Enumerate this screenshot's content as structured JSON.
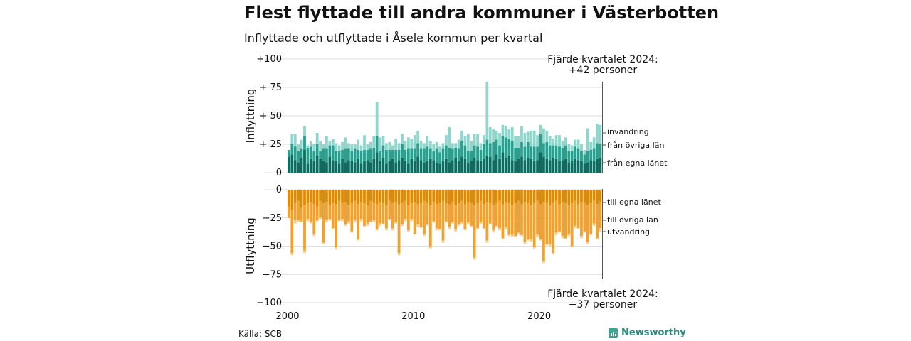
{
  "title": "Flest flyttade till andra kommuner i Västerbotten",
  "subtitle": "Inflyttade och utflyttade i Åsele kommun per kvartal",
  "source": "Källa: SCB",
  "brand": "Newsworthy",
  "colors": {
    "in_egna": "#0b6d5f",
    "in_ovriga": "#26a08f",
    "in_invandring": "#8fd6cc",
    "out_egna": "#e08a00",
    "out_ovriga": "#f3a12c",
    "out_utvandring": "#f7cf94",
    "grid": "#dddddd"
  },
  "chart_data": {
    "type": "bar",
    "stacked": true,
    "x_start": "2000 Q1",
    "x_end": "2024 Q4",
    "x_tick_labels": [
      "2000",
      "2010",
      "2020"
    ],
    "upper_panel": {
      "ylabel": "Inflyttning",
      "ylim": [
        0,
        100
      ],
      "y_ticks": [
        0,
        25,
        50,
        75,
        100
      ],
      "y_tick_labels": [
        "0",
        "+ 25",
        "+ 50",
        "+ 75",
        "+100"
      ],
      "series": [
        {
          "name": "från egna länet",
          "values": [
            14,
            16,
            11,
            9,
            13,
            20,
            8,
            12,
            10,
            15,
            12,
            10,
            9,
            14,
            11,
            10,
            8,
            12,
            9,
            11,
            10,
            9,
            12,
            8,
            10,
            11,
            9,
            12,
            18,
            10,
            13,
            8,
            10,
            12,
            9,
            11,
            13,
            10,
            8,
            12,
            10,
            14,
            11,
            9,
            10,
            12,
            11,
            9,
            8,
            10,
            12,
            9,
            11,
            13,
            10,
            14,
            12,
            9,
            10,
            13,
            11,
            10,
            12,
            15,
            14,
            11,
            16,
            12,
            18,
            13,
            15,
            11,
            10,
            12,
            14,
            11,
            13,
            12,
            10,
            11,
            18,
            14,
            12,
            11,
            13,
            12,
            10,
            11,
            12,
            9,
            10,
            12,
            11,
            10,
            8,
            9,
            11,
            10,
            12,
            13
          ]
        },
        {
          "name": "från övriga län",
          "values": [
            6,
            9,
            12,
            10,
            8,
            12,
            14,
            11,
            9,
            10,
            7,
            11,
            12,
            10,
            13,
            9,
            11,
            8,
            12,
            10,
            9,
            12,
            8,
            11,
            10,
            9,
            12,
            10,
            14,
            9,
            11,
            12,
            10,
            8,
            11,
            9,
            12,
            10,
            13,
            9,
            11,
            12,
            10,
            12,
            13,
            9,
            8,
            12,
            10,
            11,
            12,
            13,
            10,
            9,
            11,
            14,
            12,
            10,
            9,
            11,
            12,
            10,
            13,
            14,
            12,
            16,
            13,
            12,
            14,
            18,
            15,
            17,
            12,
            10,
            13,
            12,
            14,
            11,
            13,
            12,
            16,
            12,
            15,
            13,
            11,
            12,
            13,
            11,
            12,
            10,
            9,
            11,
            10,
            9,
            8,
            10,
            9,
            11,
            14,
            12
          ]
        },
        {
          "name": "invandring",
          "values": [
            0,
            9,
            11,
            6,
            8,
            9,
            2,
            5,
            6,
            10,
            9,
            4,
            11,
            4,
            6,
            7,
            5,
            7,
            10,
            5,
            6,
            4,
            9,
            5,
            13,
            5,
            6,
            10,
            30,
            12,
            8,
            6,
            7,
            4,
            10,
            6,
            9,
            8,
            10,
            9,
            12,
            11,
            7,
            5,
            9,
            7,
            6,
            6,
            5,
            5,
            9,
            18,
            5,
            4,
            8,
            9,
            8,
            15,
            9,
            10,
            11,
            6,
            8,
            51,
            14,
            11,
            8,
            11,
            10,
            10,
            8,
            12,
            10,
            10,
            14,
            12,
            9,
            14,
            14,
            10,
            8,
            13,
            10,
            8,
            6,
            9,
            10,
            6,
            7,
            6,
            5,
            6,
            8,
            6,
            4,
            20,
            7,
            10,
            17,
            17
          ]
        }
      ]
    },
    "lower_panel": {
      "ylabel": "Utflyttning",
      "ylim": [
        -100,
        0
      ],
      "y_ticks": [
        0,
        -25,
        -50,
        -75,
        -100
      ],
      "y_tick_labels": [
        "0",
        "−25",
        "−50",
        "−75",
        "−100"
      ],
      "series": [
        {
          "name": "till egna länet",
          "values": [
            -15,
            -18,
            -12,
            -10,
            -16,
            -14,
            -12,
            -11,
            -13,
            -15,
            -10,
            -12,
            -11,
            -14,
            -12,
            -13,
            -10,
            -12,
            -11,
            -14,
            -12,
            -10,
            -13,
            -11,
            -12,
            -14,
            -10,
            -12,
            -13,
            -11,
            -12,
            -14,
            -10,
            -12,
            -11,
            -13,
            -12,
            -10,
            -14,
            -12,
            -11,
            -13,
            -12,
            -10,
            -12,
            -14,
            -11,
            -13,
            -12,
            -10,
            -12,
            -13,
            -11,
            -14,
            -12,
            -10,
            -13,
            -11,
            -12,
            -14,
            -12,
            -10,
            -13,
            -11,
            -12,
            -14,
            -12,
            -10,
            -13,
            -11,
            -12,
            -14,
            -12,
            -10,
            -13,
            -11,
            -12,
            -14,
            -12,
            -10,
            -13,
            -11,
            -12,
            -14,
            -12,
            -10,
            -13,
            -11,
            -12,
            -14,
            -12,
            -10,
            -13,
            -11,
            -12,
            -14,
            -12,
            -10,
            -13,
            -11
          ]
        },
        {
          "name": "till övriga län",
          "values": [
            -10,
            -38,
            -15,
            -17,
            -12,
            -40,
            -14,
            -18,
            -26,
            -12,
            -14,
            -35,
            -16,
            -12,
            -22,
            -38,
            -17,
            -14,
            -20,
            -14,
            -25,
            -17,
            -31,
            -15,
            -20,
            -16,
            -18,
            -15,
            -22,
            -19,
            -18,
            -20,
            -16,
            -22,
            -18,
            -43,
            -19,
            -16,
            -22,
            -14,
            -28,
            -18,
            -21,
            -29,
            -19,
            -36,
            -17,
            -21,
            -23,
            -35,
            -16,
            -20,
            -18,
            -21,
            -19,
            -19,
            -22,
            -18,
            -20,
            -46,
            -22,
            -19,
            -21,
            -34,
            -18,
            -22,
            -20,
            -24,
            -30,
            -22,
            -28,
            -26,
            -29,
            -28,
            -27,
            -35,
            -32,
            -30,
            -39,
            -30,
            -31,
            -52,
            -36,
            -34,
            -44,
            -28,
            -24,
            -30,
            -31,
            -25,
            -38,
            -22,
            -21,
            -30,
            -25,
            -32,
            -27,
            -20,
            -30,
            -23
          ]
        },
        {
          "name": "utvandring",
          "values": [
            0,
            -2,
            -3,
            -2,
            -1,
            -2,
            -2,
            -1,
            -2,
            -1,
            -2,
            -1,
            -2,
            -1,
            -1,
            -2,
            -1,
            -2,
            -1,
            -2,
            -1,
            -2,
            -1,
            -2,
            -1,
            -2,
            -1,
            -2,
            -1,
            -2,
            -1,
            -2,
            -1,
            -2,
            -1,
            -2,
            -1,
            -2,
            -1,
            -2,
            -1,
            -2,
            -1,
            -2,
            -1,
            -2,
            -1,
            -2,
            -1,
            -2,
            -1,
            -2,
            -1,
            -2,
            -1,
            -2,
            -1,
            -2,
            -1,
            -2,
            -1,
            -2,
            -1,
            -2,
            -1,
            -2,
            -1,
            -2,
            -1,
            -2,
            -1,
            -2,
            -1,
            -2,
            -1,
            -2,
            -1,
            -2,
            -1,
            -2,
            -1,
            -2,
            -1,
            -2,
            -1,
            -2,
            -1,
            -2,
            -1,
            -2,
            -1,
            -2,
            -1,
            -2,
            -1,
            -2,
            -1,
            -2,
            -1,
            -3
          ]
        }
      ]
    },
    "annotations": [
      {
        "panel": "upper",
        "line1": "Fjärde kvartalet 2024:",
        "line2": "+42 personer"
      },
      {
        "panel": "lower",
        "line1": "Fjärde kvartalet 2024:",
        "line2": "−37 personer"
      }
    ]
  }
}
